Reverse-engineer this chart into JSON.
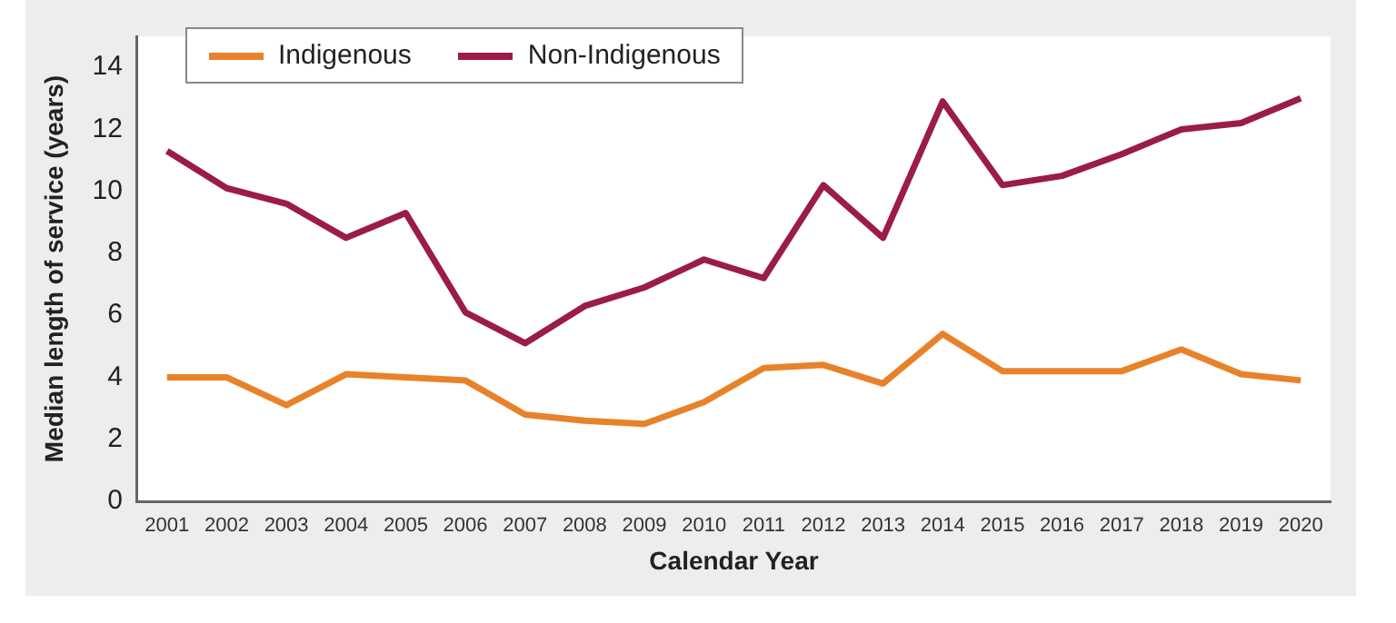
{
  "chart_data": {
    "type": "line",
    "xlabel": "Calendar Year",
    "ylabel": "Median length of service (years)",
    "categories": [
      "2001",
      "2002",
      "2003",
      "2004",
      "2005",
      "2006",
      "2007",
      "2008",
      "2009",
      "2010",
      "2011",
      "2012",
      "2013",
      "2014",
      "2015",
      "2016",
      "2017",
      "2018",
      "2019",
      "2020"
    ],
    "series": [
      {
        "name": "Indigenous",
        "color": "#e8822a",
        "values": [
          4.0,
          4.0,
          3.1,
          4.1,
          4.0,
          3.9,
          2.8,
          2.6,
          2.5,
          3.2,
          4.3,
          4.4,
          3.8,
          5.4,
          4.2,
          4.2,
          4.2,
          4.9,
          4.1,
          3.9
        ]
      },
      {
        "name": "Non-Indigenous",
        "color": "#9b1b4a",
        "values": [
          11.3,
          10.1,
          9.6,
          8.5,
          9.3,
          6.1,
          5.1,
          6.3,
          6.9,
          7.8,
          7.2,
          10.2,
          8.5,
          12.9,
          10.2,
          10.5,
          11.2,
          12.0,
          12.2,
          13.0
        ]
      }
    ],
    "ylim": [
      0,
      15
    ],
    "yticks": [
      0,
      2,
      4,
      6,
      8,
      10,
      12,
      14
    ],
    "grid": false,
    "legend": "top left",
    "marker": "none",
    "line_style": "solid"
  }
}
